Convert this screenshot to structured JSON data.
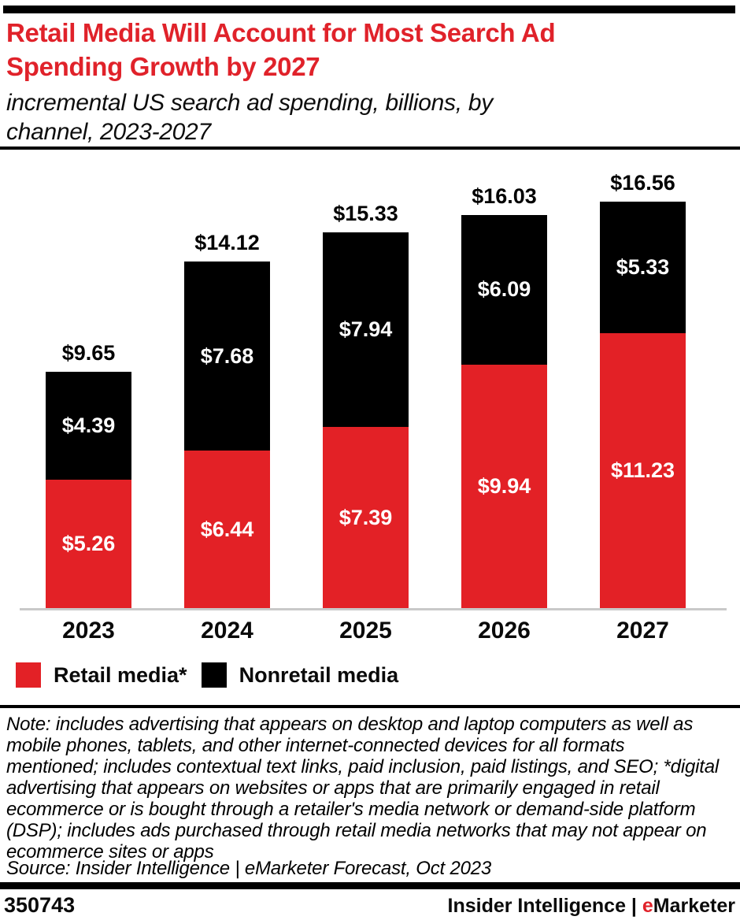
{
  "header": {
    "title": "Retail Media Will Account for Most Search Ad\nSpending Growth by 2027",
    "subtitle": "incremental US search ad spending, billions, by\nchannel, 2023-2027",
    "title_color": "#e0222a"
  },
  "chart_data": {
    "type": "bar",
    "stacked": true,
    "title": "Retail Media Will Account for Most Search Ad Spending Growth by 2027",
    "subtitle": "incremental US search ad spending, billions, by channel, 2023-2027",
    "unit": "billions of US dollars",
    "categories": [
      "2023",
      "2024",
      "2025",
      "2026",
      "2027"
    ],
    "series": [
      {
        "name": "Retail media*",
        "color": "#e32126",
        "values": [
          5.26,
          6.44,
          7.39,
          9.94,
          11.23
        ],
        "labels": [
          "$5.26",
          "$6.44",
          "$7.39",
          "$9.94",
          "$11.23"
        ]
      },
      {
        "name": "Nonretail media",
        "color": "#000000",
        "values": [
          4.39,
          7.68,
          7.94,
          6.09,
          5.33
        ],
        "labels": [
          "$4.39",
          "$7.68",
          "$7.94",
          "$6.09",
          "$5.33"
        ]
      }
    ],
    "totals": [
      9.65,
      14.12,
      15.33,
      16.03,
      16.56
    ],
    "total_labels": [
      "$9.65",
      "$14.12",
      "$15.33",
      "$16.03",
      "$16.56"
    ],
    "grid": false,
    "y_axis_shown": false,
    "legend_position": "bottom"
  },
  "legend": {
    "items": [
      {
        "label": "Retail media*",
        "color": "#e32126"
      },
      {
        "label": "Nonretail media",
        "color": "#000000"
      }
    ]
  },
  "note": {
    "text": "Note: includes advertising that appears on desktop and laptop computers as well as\nmobile phones, tablets, and other internet-connected devices for all formats\nmentioned; includes contextual text links, paid inclusion, paid listings, and SEO; *digital\nadvertising that appears on websites or apps that are primarily engaged in retail\necommerce or is bought through a retailer's media network or demand-side platform\n(DSP); includes ads purchased through retail media networks that may not appear on\necommerce sites or apps",
    "source": "Source: Insider Intelligence | eMarketer Forecast, Oct 2023"
  },
  "footer": {
    "chart_id": "350743",
    "brand_prefix": "Insider Intelligence | ",
    "brand_e": "e",
    "brand_rest": "Marketer",
    "accent_color": "#e0222a"
  }
}
